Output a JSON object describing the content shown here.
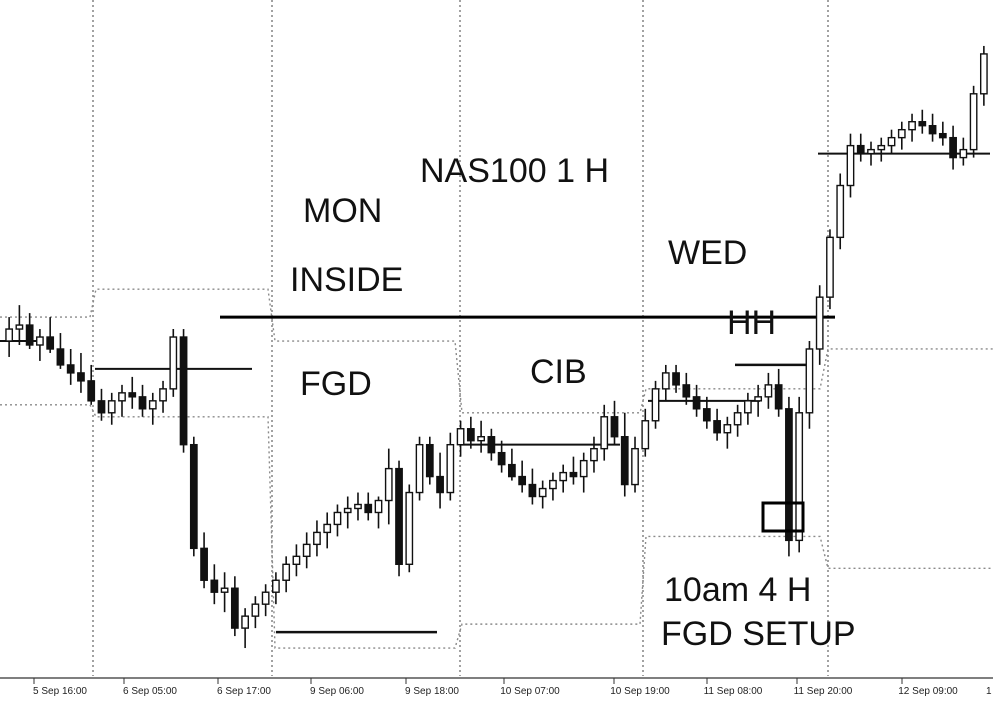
{
  "chart_data": {
    "type": "candlestick",
    "title": "NAS100 1 H",
    "xlabel": "",
    "ylabel": "",
    "x_tick_labels": [
      "5 Sep 16:00",
      "6 Sep 05:00",
      "6 Sep 17:00",
      "9 Sep 06:00",
      "9 Sep 18:00",
      "10 Sep 07:00",
      "10 Sep 19:00",
      "11 Sep 08:00",
      "11 Sep 20:00",
      "12 Sep 09:00"
    ],
    "annotations": [
      "MON",
      "INSIDE",
      "FGD",
      "CIB",
      "WED",
      "HH",
      "10am  4 H",
      "FGD SETUP"
    ],
    "series": [
      {
        "values": [
          {
            "o": 324,
            "h": 330,
            "l": 320,
            "c": 327
          },
          {
            "o": 327,
            "h": 333,
            "l": 323,
            "c": 328
          },
          {
            "o": 328,
            "h": 331,
            "l": 322,
            "c": 323
          },
          {
            "o": 323,
            "h": 327,
            "l": 319,
            "c": 325
          },
          {
            "o": 325,
            "h": 330,
            "l": 321,
            "c": 322
          },
          {
            "o": 322,
            "h": 326,
            "l": 317,
            "c": 318
          },
          {
            "o": 318,
            "h": 322,
            "l": 313,
            "c": 316
          },
          {
            "o": 316,
            "h": 321,
            "l": 311,
            "c": 314
          },
          {
            "o": 314,
            "h": 318,
            "l": 308,
            "c": 309
          },
          {
            "o": 309,
            "h": 312,
            "l": 304,
            "c": 306
          },
          {
            "o": 306,
            "h": 311,
            "l": 303,
            "c": 309
          },
          {
            "o": 309,
            "h": 313,
            "l": 305,
            "c": 311
          },
          {
            "o": 311,
            "h": 315,
            "l": 307,
            "c": 310
          },
          {
            "o": 310,
            "h": 313,
            "l": 305,
            "c": 307
          },
          {
            "o": 307,
            "h": 311,
            "l": 303,
            "c": 309
          },
          {
            "o": 309,
            "h": 314,
            "l": 306,
            "c": 312
          },
          {
            "o": 312,
            "h": 327,
            "l": 310,
            "c": 325
          },
          {
            "o": 325,
            "h": 327,
            "l": 296,
            "c": 298
          },
          {
            "o": 298,
            "h": 300,
            "l": 270,
            "c": 272
          },
          {
            "o": 272,
            "h": 276,
            "l": 262,
            "c": 264
          },
          {
            "o": 264,
            "h": 268,
            "l": 258,
            "c": 261
          },
          {
            "o": 261,
            "h": 266,
            "l": 256,
            "c": 262
          },
          {
            "o": 262,
            "h": 265,
            "l": 250,
            "c": 252
          },
          {
            "o": 252,
            "h": 257,
            "l": 247,
            "c": 255
          },
          {
            "o": 255,
            "h": 260,
            "l": 252,
            "c": 258
          },
          {
            "o": 258,
            "h": 263,
            "l": 255,
            "c": 261
          },
          {
            "o": 261,
            "h": 266,
            "l": 258,
            "c": 264
          },
          {
            "o": 264,
            "h": 270,
            "l": 261,
            "c": 268
          },
          {
            "o": 268,
            "h": 273,
            "l": 265,
            "c": 270
          },
          {
            "o": 270,
            "h": 276,
            "l": 267,
            "c": 273
          },
          {
            "o": 273,
            "h": 279,
            "l": 270,
            "c": 276
          },
          {
            "o": 276,
            "h": 281,
            "l": 272,
            "c": 278
          },
          {
            "o": 278,
            "h": 283,
            "l": 275,
            "c": 281
          },
          {
            "o": 281,
            "h": 285,
            "l": 277,
            "c": 282
          },
          {
            "o": 282,
            "h": 286,
            "l": 279,
            "c": 283
          },
          {
            "o": 283,
            "h": 286,
            "l": 279,
            "c": 281
          },
          {
            "o": 281,
            "h": 285,
            "l": 277,
            "c": 284
          },
          {
            "o": 284,
            "h": 297,
            "l": 278,
            "c": 292
          },
          {
            "o": 292,
            "h": 294,
            "l": 265,
            "c": 268
          },
          {
            "o": 268,
            "h": 288,
            "l": 266,
            "c": 286
          },
          {
            "o": 286,
            "h": 300,
            "l": 284,
            "c": 298
          },
          {
            "o": 298,
            "h": 300,
            "l": 288,
            "c": 290
          },
          {
            "o": 290,
            "h": 296,
            "l": 282,
            "c": 286
          },
          {
            "o": 286,
            "h": 301,
            "l": 284,
            "c": 298
          },
          {
            "o": 298,
            "h": 304,
            "l": 295,
            "c": 302
          },
          {
            "o": 302,
            "h": 305,
            "l": 297,
            "c": 299
          },
          {
            "o": 299,
            "h": 304,
            "l": 296,
            "c": 300
          },
          {
            "o": 300,
            "h": 302,
            "l": 294,
            "c": 296
          },
          {
            "o": 296,
            "h": 299,
            "l": 291,
            "c": 293
          },
          {
            "o": 293,
            "h": 297,
            "l": 289,
            "c": 290
          },
          {
            "o": 290,
            "h": 294,
            "l": 286,
            "c": 288
          },
          {
            "o": 288,
            "h": 292,
            "l": 283,
            "c": 285
          },
          {
            "o": 285,
            "h": 289,
            "l": 282,
            "c": 287
          },
          {
            "o": 287,
            "h": 291,
            "l": 284,
            "c": 289
          },
          {
            "o": 289,
            "h": 293,
            "l": 286,
            "c": 291
          },
          {
            "o": 291,
            "h": 295,
            "l": 288,
            "c": 290
          },
          {
            "o": 290,
            "h": 296,
            "l": 286,
            "c": 294
          },
          {
            "o": 294,
            "h": 300,
            "l": 291,
            "c": 297
          },
          {
            "o": 297,
            "h": 308,
            "l": 294,
            "c": 305
          },
          {
            "o": 305,
            "h": 309,
            "l": 298,
            "c": 300
          },
          {
            "o": 300,
            "h": 306,
            "l": 285,
            "c": 288
          },
          {
            "o": 288,
            "h": 300,
            "l": 286,
            "c": 297
          },
          {
            "o": 297,
            "h": 307,
            "l": 295,
            "c": 304
          },
          {
            "o": 304,
            "h": 314,
            "l": 302,
            "c": 312
          },
          {
            "o": 312,
            "h": 318,
            "l": 309,
            "c": 316
          },
          {
            "o": 316,
            "h": 318,
            "l": 311,
            "c": 313
          },
          {
            "o": 313,
            "h": 316,
            "l": 308,
            "c": 310
          },
          {
            "o": 310,
            "h": 313,
            "l": 305,
            "c": 307
          },
          {
            "o": 307,
            "h": 310,
            "l": 302,
            "c": 304
          },
          {
            "o": 304,
            "h": 307,
            "l": 299,
            "c": 301
          },
          {
            "o": 301,
            "h": 305,
            "l": 297,
            "c": 303
          },
          {
            "o": 303,
            "h": 308,
            "l": 300,
            "c": 306
          },
          {
            "o": 306,
            "h": 311,
            "l": 303,
            "c": 309
          },
          {
            "o": 309,
            "h": 313,
            "l": 305,
            "c": 310
          },
          {
            "o": 310,
            "h": 316,
            "l": 307,
            "c": 313
          },
          {
            "o": 313,
            "h": 317,
            "l": 305,
            "c": 307
          },
          {
            "o": 307,
            "h": 310,
            "l": 270,
            "c": 274
          },
          {
            "o": 274,
            "h": 310,
            "l": 271,
            "c": 306
          },
          {
            "o": 306,
            "h": 324,
            "l": 302,
            "c": 322
          },
          {
            "o": 322,
            "h": 338,
            "l": 318,
            "c": 335
          },
          {
            "o": 335,
            "h": 352,
            "l": 332,
            "c": 350
          },
          {
            "o": 350,
            "h": 366,
            "l": 347,
            "c": 363
          },
          {
            "o": 363,
            "h": 376,
            "l": 360,
            "c": 373
          },
          {
            "o": 373,
            "h": 376,
            "l": 369,
            "c": 371
          },
          {
            "o": 371,
            "h": 374,
            "l": 368,
            "c": 372
          },
          {
            "o": 372,
            "h": 375,
            "l": 369,
            "c": 373
          },
          {
            "o": 373,
            "h": 377,
            "l": 371,
            "c": 375
          },
          {
            "o": 375,
            "h": 379,
            "l": 372,
            "c": 377
          },
          {
            "o": 377,
            "h": 381,
            "l": 374,
            "c": 379
          },
          {
            "o": 379,
            "h": 382,
            "l": 376,
            "c": 378
          },
          {
            "o": 378,
            "h": 381,
            "l": 374,
            "c": 376
          },
          {
            "o": 376,
            "h": 379,
            "l": 373,
            "c": 375
          },
          {
            "o": 375,
            "h": 378,
            "l": 367,
            "c": 370
          },
          {
            "o": 370,
            "h": 375,
            "l": 368,
            "c": 372
          },
          {
            "o": 372,
            "h": 388,
            "l": 370,
            "c": 386
          },
          {
            "o": 386,
            "h": 398,
            "l": 383,
            "c": 396
          }
        ]
      }
    ],
    "levels": [
      {
        "name": "inside-high",
        "value": 330
      },
      {
        "name": "wed-high",
        "value": 320
      }
    ],
    "ylim": [
      244,
      402
    ],
    "grid": true
  }
}
